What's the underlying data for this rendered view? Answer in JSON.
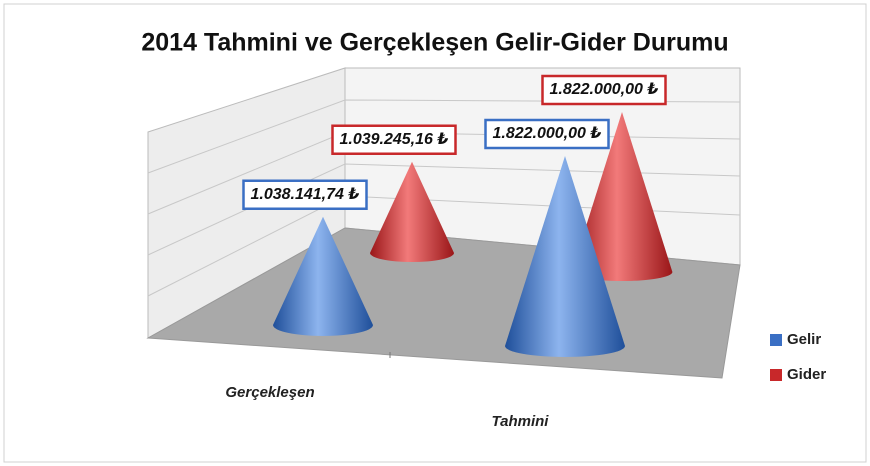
{
  "chart_data": {
    "type": "cone3d",
    "title": "2014 Tahmini ve Gerçekleşen Gelir-Gider Durumu",
    "categories": [
      "Gerçekleşen",
      "Tahmini"
    ],
    "series": [
      {
        "name": "Gelir",
        "color": "#3a6fc4",
        "values": [
          1038141.74,
          1822000.0
        ],
        "value_labels": [
          "1.038.141,74 ₺",
          "1.822.000,00 ₺"
        ]
      },
      {
        "name": "Gider",
        "color": "#c8282a",
        "values": [
          1039245.16,
          1822000.0
        ],
        "value_labels": [
          "1.039.245,16 ₺",
          "1.822.000,00 ₺"
        ]
      }
    ],
    "legend": "right"
  }
}
